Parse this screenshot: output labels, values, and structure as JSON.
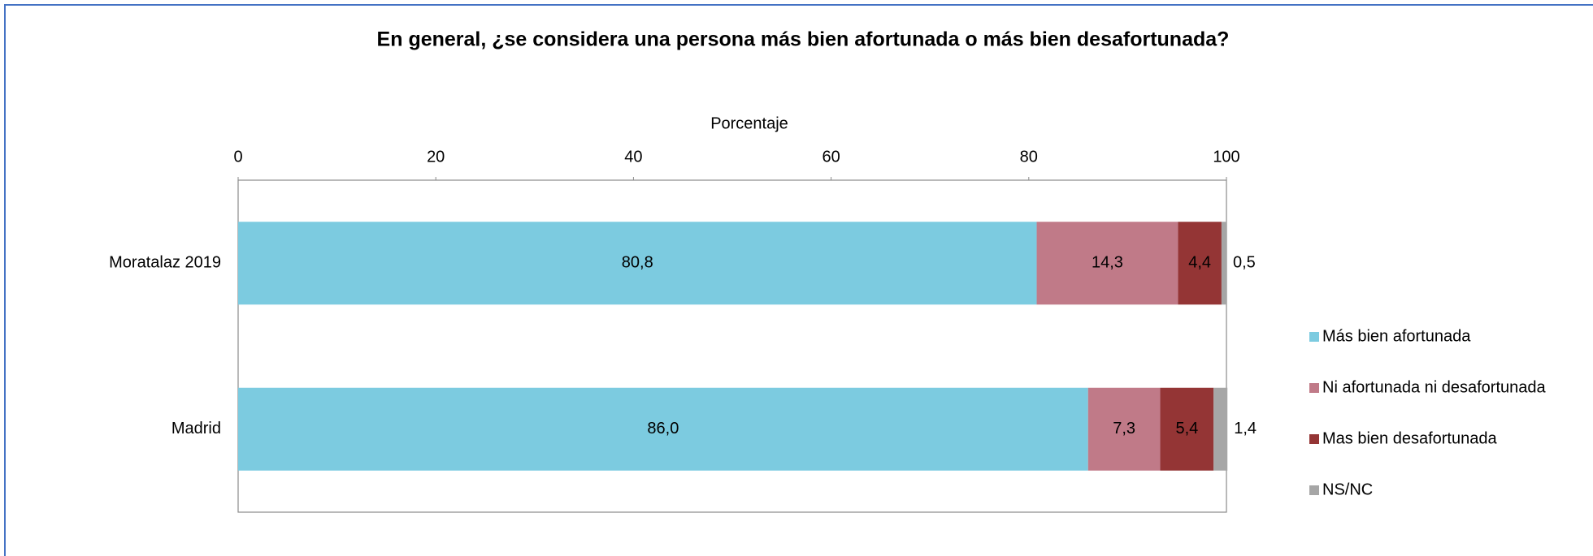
{
  "chart_data": {
    "type": "stacked_bar_horizontal",
    "title": "En general, ¿se considera una persona más bien afortunada o más bien desafortunada?",
    "x_label": "Porcentaje",
    "categories": [
      "Moratalaz 2019",
      "Madrid"
    ],
    "series": [
      {
        "name": "Más bien afortunada",
        "color": "#7ccbe0",
        "values": [
          80.8,
          86.0
        ],
        "value_labels": [
          "80,8",
          "86,0"
        ]
      },
      {
        "name": "Ni afortunada ni desafortunada",
        "color": "#c07a88",
        "values": [
          14.3,
          7.3
        ],
        "value_labels": [
          "14,3",
          "7,3"
        ]
      },
      {
        "name": "Mas bien desafortunada",
        "color": "#943535",
        "values": [
          4.4,
          5.4
        ],
        "value_labels": [
          "4,4",
          "5,4"
        ]
      },
      {
        "name": "NS/NC",
        "color": "#a6a6a6",
        "values": [
          0.5,
          1.4
        ],
        "value_labels": [
          "0,5",
          "1,4"
        ]
      }
    ],
    "xlim": [
      0,
      100
    ],
    "xticks": [
      0,
      20,
      40,
      60,
      80,
      100
    ],
    "legend": "right"
  }
}
